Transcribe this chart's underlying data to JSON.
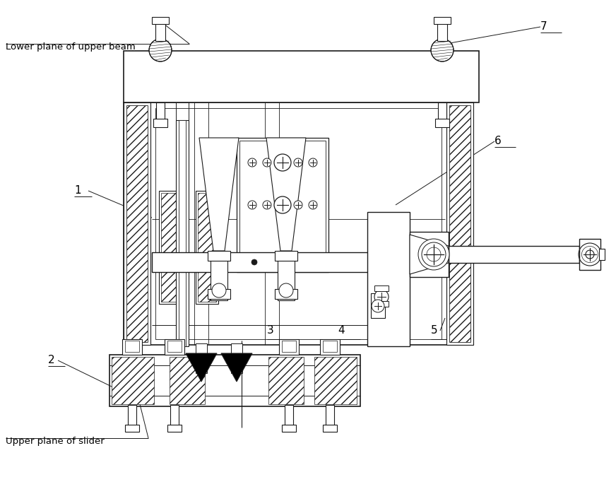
{
  "bg_color": "#ffffff",
  "lc": "#1a1a1a",
  "labels": {
    "lower_beam": "Lower plane of upper beam",
    "upper_slider": "Upper plane of slider",
    "n1": "1",
    "n2": "2",
    "n3": "3",
    "n4": "4",
    "n5": "5",
    "n6": "6",
    "n7": "7"
  },
  "figsize": [
    8.72,
    6.75
  ],
  "dpi": 100
}
